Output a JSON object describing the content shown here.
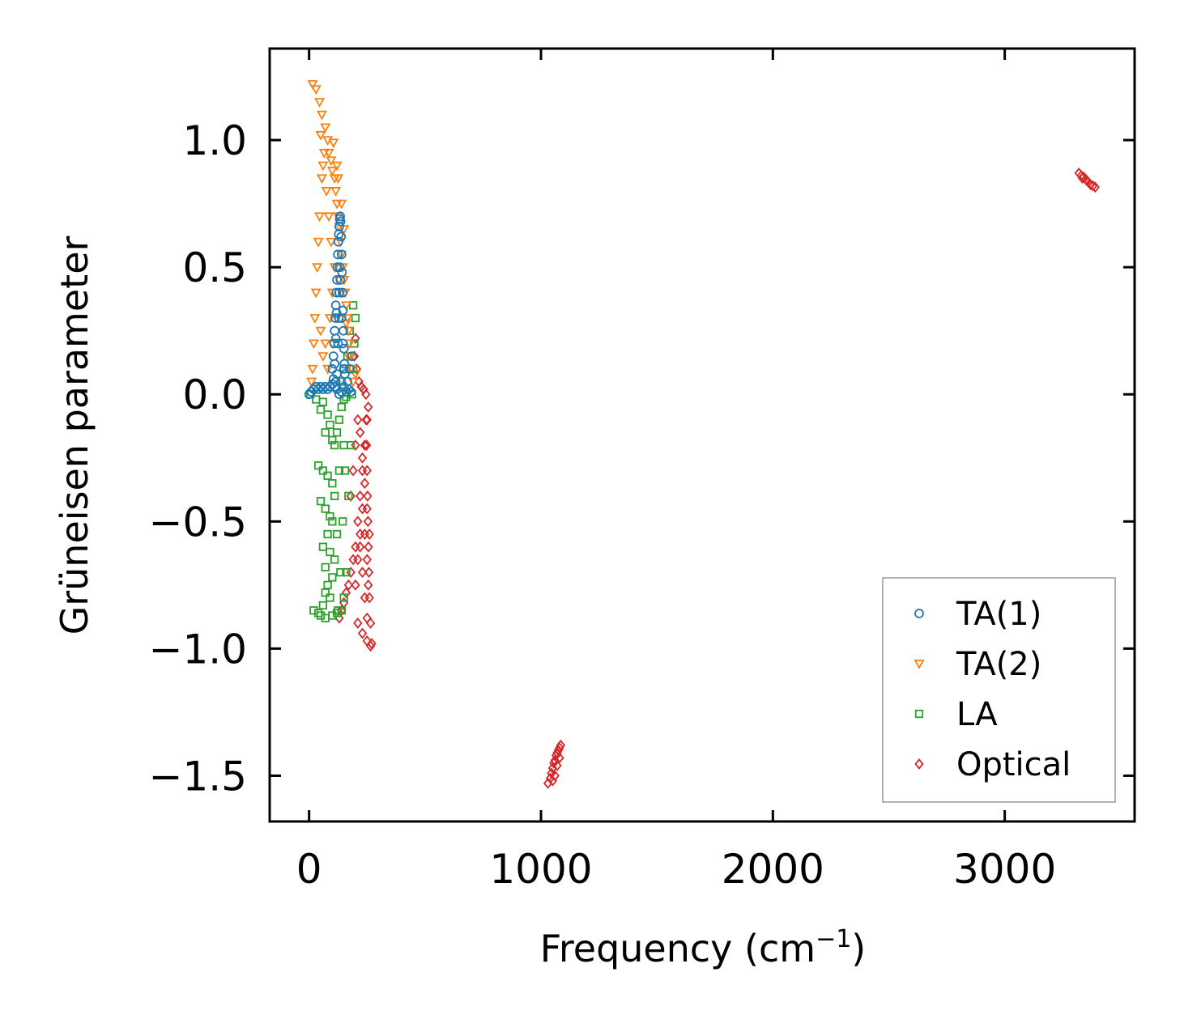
{
  "chart_data": {
    "type": "scatter",
    "title": "",
    "xlabel": "Frequency (cm",
    "xlabel_sup": "−1",
    "xlabel_end": ")",
    "ylabel": "Grüneisen parameter",
    "xlim": [
      -170,
      3560
    ],
    "ylim": [
      -1.68,
      1.36
    ],
    "xticks": [
      0,
      1000,
      2000,
      3000
    ],
    "xtick_labels": [
      "0",
      "1000",
      "2000",
      "3000"
    ],
    "yticks": [
      -1.5,
      -1.0,
      -0.5,
      0.0,
      0.5,
      1.0
    ],
    "ytick_labels": [
      "−1.5",
      "−1.0",
      "−0.5",
      "0.0",
      "0.5",
      "1.0"
    ],
    "grid": false,
    "legend_position": "lower-right",
    "series": [
      {
        "name": "TA(1)",
        "marker": "circle",
        "color": "#1f77b4",
        "points": [
          [
            0,
            0.0
          ],
          [
            10,
            0.01
          ],
          [
            20,
            0.02
          ],
          [
            30,
            0.03
          ],
          [
            40,
            0.02
          ],
          [
            50,
            0.03
          ],
          [
            60,
            0.02
          ],
          [
            70,
            0.03
          ],
          [
            80,
            0.02
          ],
          [
            90,
            0.03
          ],
          [
            100,
            0.04
          ],
          [
            110,
            0.03
          ],
          [
            120,
            0.02
          ],
          [
            130,
            0.0
          ],
          [
            140,
            0.01
          ],
          [
            150,
            0.03
          ],
          [
            160,
            0.01
          ],
          [
            170,
            0.02
          ],
          [
            180,
            0.01
          ],
          [
            100,
            0.1
          ],
          [
            105,
            0.15
          ],
          [
            108,
            0.2
          ],
          [
            110,
            0.25
          ],
          [
            112,
            0.3
          ],
          [
            115,
            0.35
          ],
          [
            117,
            0.4
          ],
          [
            120,
            0.45
          ],
          [
            122,
            0.5
          ],
          [
            124,
            0.55
          ],
          [
            126,
            0.6
          ],
          [
            128,
            0.63
          ],
          [
            130,
            0.66
          ],
          [
            132,
            0.69
          ],
          [
            134,
            0.7
          ],
          [
            136,
            0.68
          ],
          [
            138,
            0.62
          ],
          [
            140,
            0.55
          ],
          [
            142,
            0.48
          ],
          [
            144,
            0.4
          ],
          [
            146,
            0.33
          ],
          [
            148,
            0.25
          ],
          [
            150,
            0.18
          ],
          [
            152,
            0.12
          ],
          [
            154,
            0.08
          ],
          [
            125,
            0.2
          ],
          [
            128,
            0.3
          ],
          [
            130,
            0.4
          ],
          [
            132,
            0.5
          ],
          [
            110,
            0.12
          ],
          [
            115,
            0.22
          ],
          [
            118,
            0.32
          ],
          [
            140,
            0.3
          ],
          [
            145,
            0.2
          ],
          [
            150,
            0.1
          ],
          [
            120,
            0.08
          ],
          [
            135,
            0.45
          ],
          [
            165,
            0.05
          ],
          [
            175,
            0.1
          ],
          [
            185,
            0.15
          ],
          [
            115,
            0.05
          ],
          [
            105,
            0.06
          ]
        ]
      },
      {
        "name": "TA(2)",
        "marker": "triangle-down",
        "color": "#ff7f0e",
        "points": [
          [
            15,
            1.22
          ],
          [
            30,
            1.2
          ],
          [
            45,
            1.15
          ],
          [
            55,
            1.1
          ],
          [
            70,
            1.05
          ],
          [
            80,
            1.0
          ],
          [
            85,
            0.95
          ],
          [
            95,
            0.92
          ],
          [
            100,
            0.88
          ],
          [
            110,
            0.85
          ],
          [
            115,
            0.8
          ],
          [
            120,
            0.75
          ],
          [
            125,
            0.7
          ],
          [
            130,
            0.66
          ],
          [
            135,
            0.6
          ],
          [
            140,
            0.55
          ],
          [
            145,
            0.5
          ],
          [
            150,
            0.45
          ],
          [
            155,
            0.4
          ],
          [
            160,
            0.35
          ],
          [
            165,
            0.3
          ],
          [
            170,
            0.25
          ],
          [
            175,
            0.2
          ],
          [
            180,
            0.15
          ],
          [
            185,
            0.1
          ],
          [
            190,
            0.05
          ],
          [
            60,
            0.9
          ],
          [
            55,
            0.85
          ],
          [
            45,
            0.7
          ],
          [
            40,
            0.6
          ],
          [
            35,
            0.5
          ],
          [
            30,
            0.4
          ],
          [
            25,
            0.3
          ],
          [
            20,
            0.2
          ],
          [
            15,
            0.1
          ],
          [
            10,
            0.05
          ],
          [
            50,
            0.25
          ],
          [
            70,
            0.2
          ],
          [
            90,
            0.3
          ],
          [
            100,
            0.4
          ],
          [
            110,
            0.5
          ],
          [
            95,
            0.6
          ],
          [
            85,
            0.7
          ],
          [
            75,
            0.8
          ],
          [
            65,
            0.95
          ],
          [
            50,
            1.02
          ],
          [
            105,
            0.99
          ],
          [
            120,
            0.9
          ],
          [
            125,
            0.85
          ],
          [
            140,
            0.75
          ],
          [
            150,
            0.65
          ],
          [
            60,
            0.15
          ],
          [
            80,
            0.1
          ],
          [
            100,
            0.2
          ],
          [
            120,
            0.3
          ],
          [
            130,
            0.45
          ],
          [
            140,
            0.4
          ],
          [
            160,
            0.28
          ],
          [
            170,
            0.15
          ],
          [
            200,
            0.08
          ]
        ]
      },
      {
        "name": "LA",
        "marker": "square",
        "color": "#2ca02c",
        "points": [
          [
            5,
            0.0
          ],
          [
            30,
            -0.02
          ],
          [
            50,
            -0.06
          ],
          [
            60,
            -0.03
          ],
          [
            80,
            -0.08
          ],
          [
            90,
            -0.12
          ],
          [
            70,
            -0.15
          ],
          [
            100,
            -0.18
          ],
          [
            110,
            -0.2
          ],
          [
            120,
            -0.15
          ],
          [
            130,
            -0.1
          ],
          [
            140,
            -0.05
          ],
          [
            150,
            -0.02
          ],
          [
            160,
            -0.01
          ],
          [
            40,
            -0.28
          ],
          [
            60,
            -0.3
          ],
          [
            80,
            -0.32
          ],
          [
            100,
            -0.35
          ],
          [
            50,
            -0.42
          ],
          [
            70,
            -0.45
          ],
          [
            90,
            -0.48
          ],
          [
            110,
            -0.4
          ],
          [
            130,
            -0.3
          ],
          [
            150,
            -0.2
          ],
          [
            100,
            -0.5
          ],
          [
            120,
            -0.55
          ],
          [
            80,
            -0.55
          ],
          [
            90,
            -0.62
          ],
          [
            110,
            -0.65
          ],
          [
            60,
            -0.6
          ],
          [
            70,
            -0.68
          ],
          [
            100,
            -0.72
          ],
          [
            80,
            -0.75
          ],
          [
            70,
            -0.78
          ],
          [
            90,
            -0.8
          ],
          [
            60,
            -0.83
          ],
          [
            20,
            -0.85
          ],
          [
            40,
            -0.86
          ],
          [
            50,
            -0.87
          ],
          [
            70,
            -0.88
          ],
          [
            100,
            -0.87
          ],
          [
            120,
            -0.86
          ],
          [
            140,
            -0.85
          ],
          [
            150,
            -0.8
          ],
          [
            160,
            -0.7
          ],
          [
            170,
            -0.4
          ],
          [
            180,
            -0.2
          ],
          [
            185,
            0.0
          ],
          [
            190,
            0.1
          ],
          [
            195,
            0.2
          ],
          [
            200,
            0.3
          ],
          [
            190,
            0.35
          ],
          [
            175,
            0.25
          ],
          [
            165,
            0.15
          ],
          [
            150,
            0.1
          ],
          [
            140,
            0.05
          ],
          [
            155,
            -0.3
          ],
          [
            145,
            -0.5
          ],
          [
            135,
            -0.7
          ],
          [
            125,
            -0.85
          ]
        ]
      },
      {
        "name": "Optical",
        "marker": "diamond",
        "color": "#d62728",
        "points": [
          [
            130,
            -0.88
          ],
          [
            140,
            -0.85
          ],
          [
            150,
            -0.82
          ],
          [
            160,
            -0.78
          ],
          [
            170,
            -0.75
          ],
          [
            180,
            -0.7
          ],
          [
            190,
            -0.65
          ],
          [
            200,
            -0.6
          ],
          [
            210,
            -0.5
          ],
          [
            220,
            -0.4
          ],
          [
            230,
            -0.3
          ],
          [
            240,
            -0.2
          ],
          [
            250,
            -0.1
          ],
          [
            255,
            -0.05
          ],
          [
            245,
            0.0
          ],
          [
            235,
            0.02
          ],
          [
            225,
            0.03
          ],
          [
            215,
            0.05
          ],
          [
            205,
            0.1
          ],
          [
            195,
            0.15
          ],
          [
            200,
            0.22
          ],
          [
            210,
            -0.9
          ],
          [
            230,
            -0.94
          ],
          [
            250,
            -0.97
          ],
          [
            265,
            -0.99
          ],
          [
            270,
            -0.98
          ],
          [
            265,
            -0.9
          ],
          [
            260,
            -0.8
          ],
          [
            258,
            -0.7
          ],
          [
            256,
            -0.6
          ],
          [
            254,
            -0.5
          ],
          [
            252,
            -0.4
          ],
          [
            250,
            -0.3
          ],
          [
            248,
            -0.2
          ],
          [
            246,
            -0.1
          ],
          [
            180,
            -0.4
          ],
          [
            190,
            -0.3
          ],
          [
            200,
            -0.2
          ],
          [
            210,
            -0.1
          ],
          [
            220,
            -0.15
          ],
          [
            230,
            -0.25
          ],
          [
            240,
            -0.35
          ],
          [
            250,
            -0.45
          ],
          [
            260,
            -0.55
          ],
          [
            220,
            -0.6
          ],
          [
            230,
            -0.7
          ],
          [
            240,
            -0.8
          ],
          [
            250,
            -0.88
          ],
          [
            200,
            -0.75
          ],
          [
            210,
            -0.65
          ],
          [
            220,
            -0.55
          ],
          [
            230,
            -0.45
          ],
          [
            240,
            -0.55
          ],
          [
            250,
            -0.65
          ],
          [
            255,
            -0.75
          ],
          [
            1030,
            -1.53
          ],
          [
            1040,
            -1.51
          ],
          [
            1045,
            -1.49
          ],
          [
            1050,
            -1.47
          ],
          [
            1055,
            -1.45
          ],
          [
            1060,
            -1.44
          ],
          [
            1065,
            -1.42
          ],
          [
            1070,
            -1.41
          ],
          [
            1075,
            -1.4
          ],
          [
            1080,
            -1.39
          ],
          [
            1085,
            -1.38
          ],
          [
            1050,
            -1.52
          ],
          [
            1060,
            -1.5
          ],
          [
            1070,
            -1.46
          ],
          [
            1080,
            -1.43
          ],
          [
            3320,
            0.87
          ],
          [
            3330,
            0.86
          ],
          [
            3340,
            0.855
          ],
          [
            3350,
            0.845
          ],
          [
            3360,
            0.835
          ],
          [
            3370,
            0.825
          ],
          [
            3380,
            0.82
          ],
          [
            3390,
            0.815
          ],
          [
            3335,
            0.85
          ],
          [
            3355,
            0.84
          ]
        ]
      }
    ]
  }
}
